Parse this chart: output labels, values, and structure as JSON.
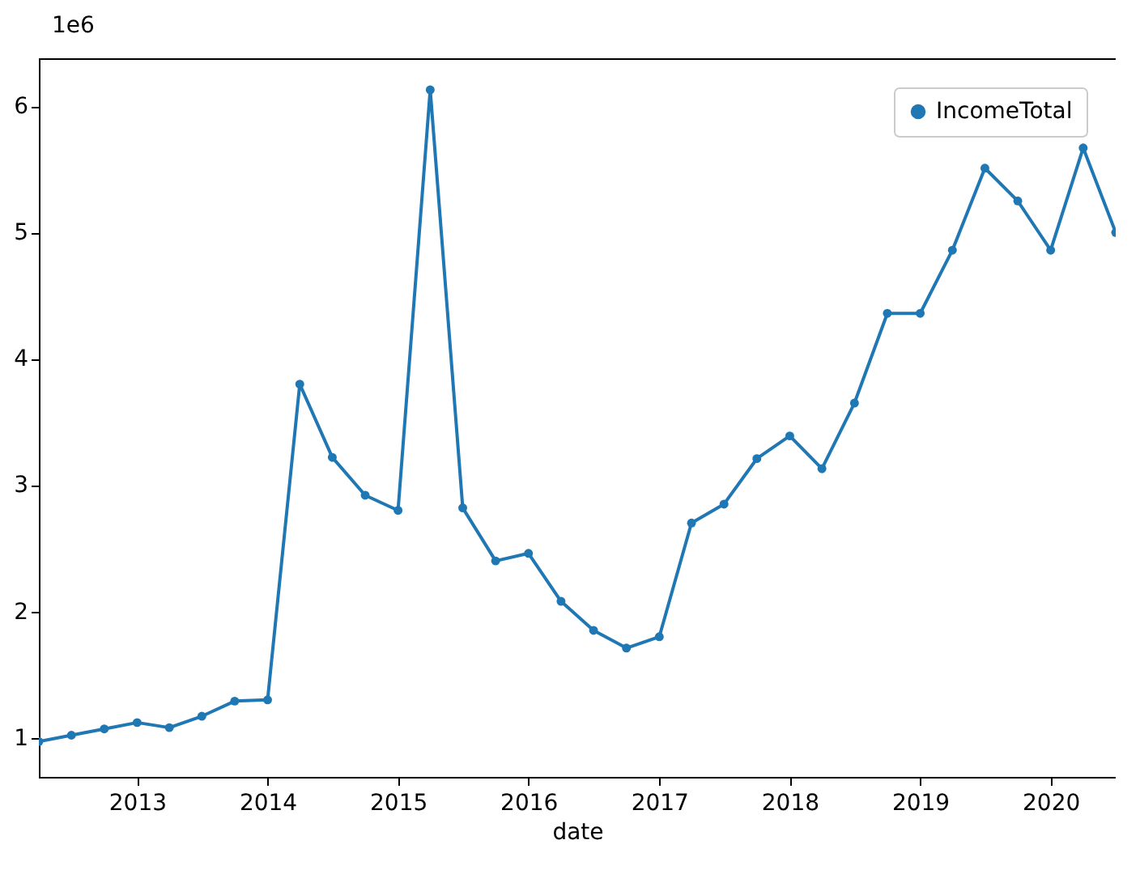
{
  "chart_data": {
    "type": "line",
    "xlabel": "date",
    "annotations": [
      "1e6"
    ],
    "x": [
      "2012-04-01",
      "2012-07-01",
      "2012-10-01",
      "2013-01-01",
      "2013-04-01",
      "2013-07-01",
      "2013-10-01",
      "2014-01-01",
      "2014-04-01",
      "2014-07-01",
      "2014-10-01",
      "2015-01-01",
      "2015-04-01",
      "2015-07-01",
      "2015-10-01",
      "2016-01-01",
      "2016-04-01",
      "2016-07-01",
      "2016-10-01",
      "2017-01-01",
      "2017-04-01",
      "2017-07-01",
      "2017-10-01",
      "2018-01-01",
      "2018-04-01",
      "2018-07-01",
      "2018-10-01",
      "2019-01-01",
      "2019-04-01",
      "2019-07-01",
      "2019-10-01",
      "2020-01-01",
      "2020-04-01",
      "2020-07-01"
    ],
    "series": [
      {
        "name": "IncomeTotal",
        "color": "#1f77b4",
        "values": [
          0.97,
          1.02,
          1.07,
          1.12,
          1.08,
          1.17,
          1.29,
          1.3,
          3.8,
          3.22,
          2.92,
          2.8,
          6.13,
          2.82,
          2.4,
          2.46,
          2.08,
          1.85,
          1.71,
          1.8,
          2.7,
          2.85,
          3.21,
          3.39,
          3.13,
          3.65,
          4.36,
          4.36,
          4.86,
          5.51,
          5.25,
          4.86,
          5.67,
          5.0
        ]
      }
    ],
    "xlim": [
      "2012-04-01",
      "2020-07-01"
    ],
    "xticks": [
      "2013",
      "2014",
      "2015",
      "2016",
      "2017",
      "2018",
      "2019",
      "2020"
    ],
    "ylim": [
      0.69,
      6.38
    ],
    "yticks": [
      1,
      2,
      3,
      4,
      5,
      6
    ],
    "grid": false,
    "legend": "top right",
    "marker": "circle",
    "line_style": "solid"
  }
}
